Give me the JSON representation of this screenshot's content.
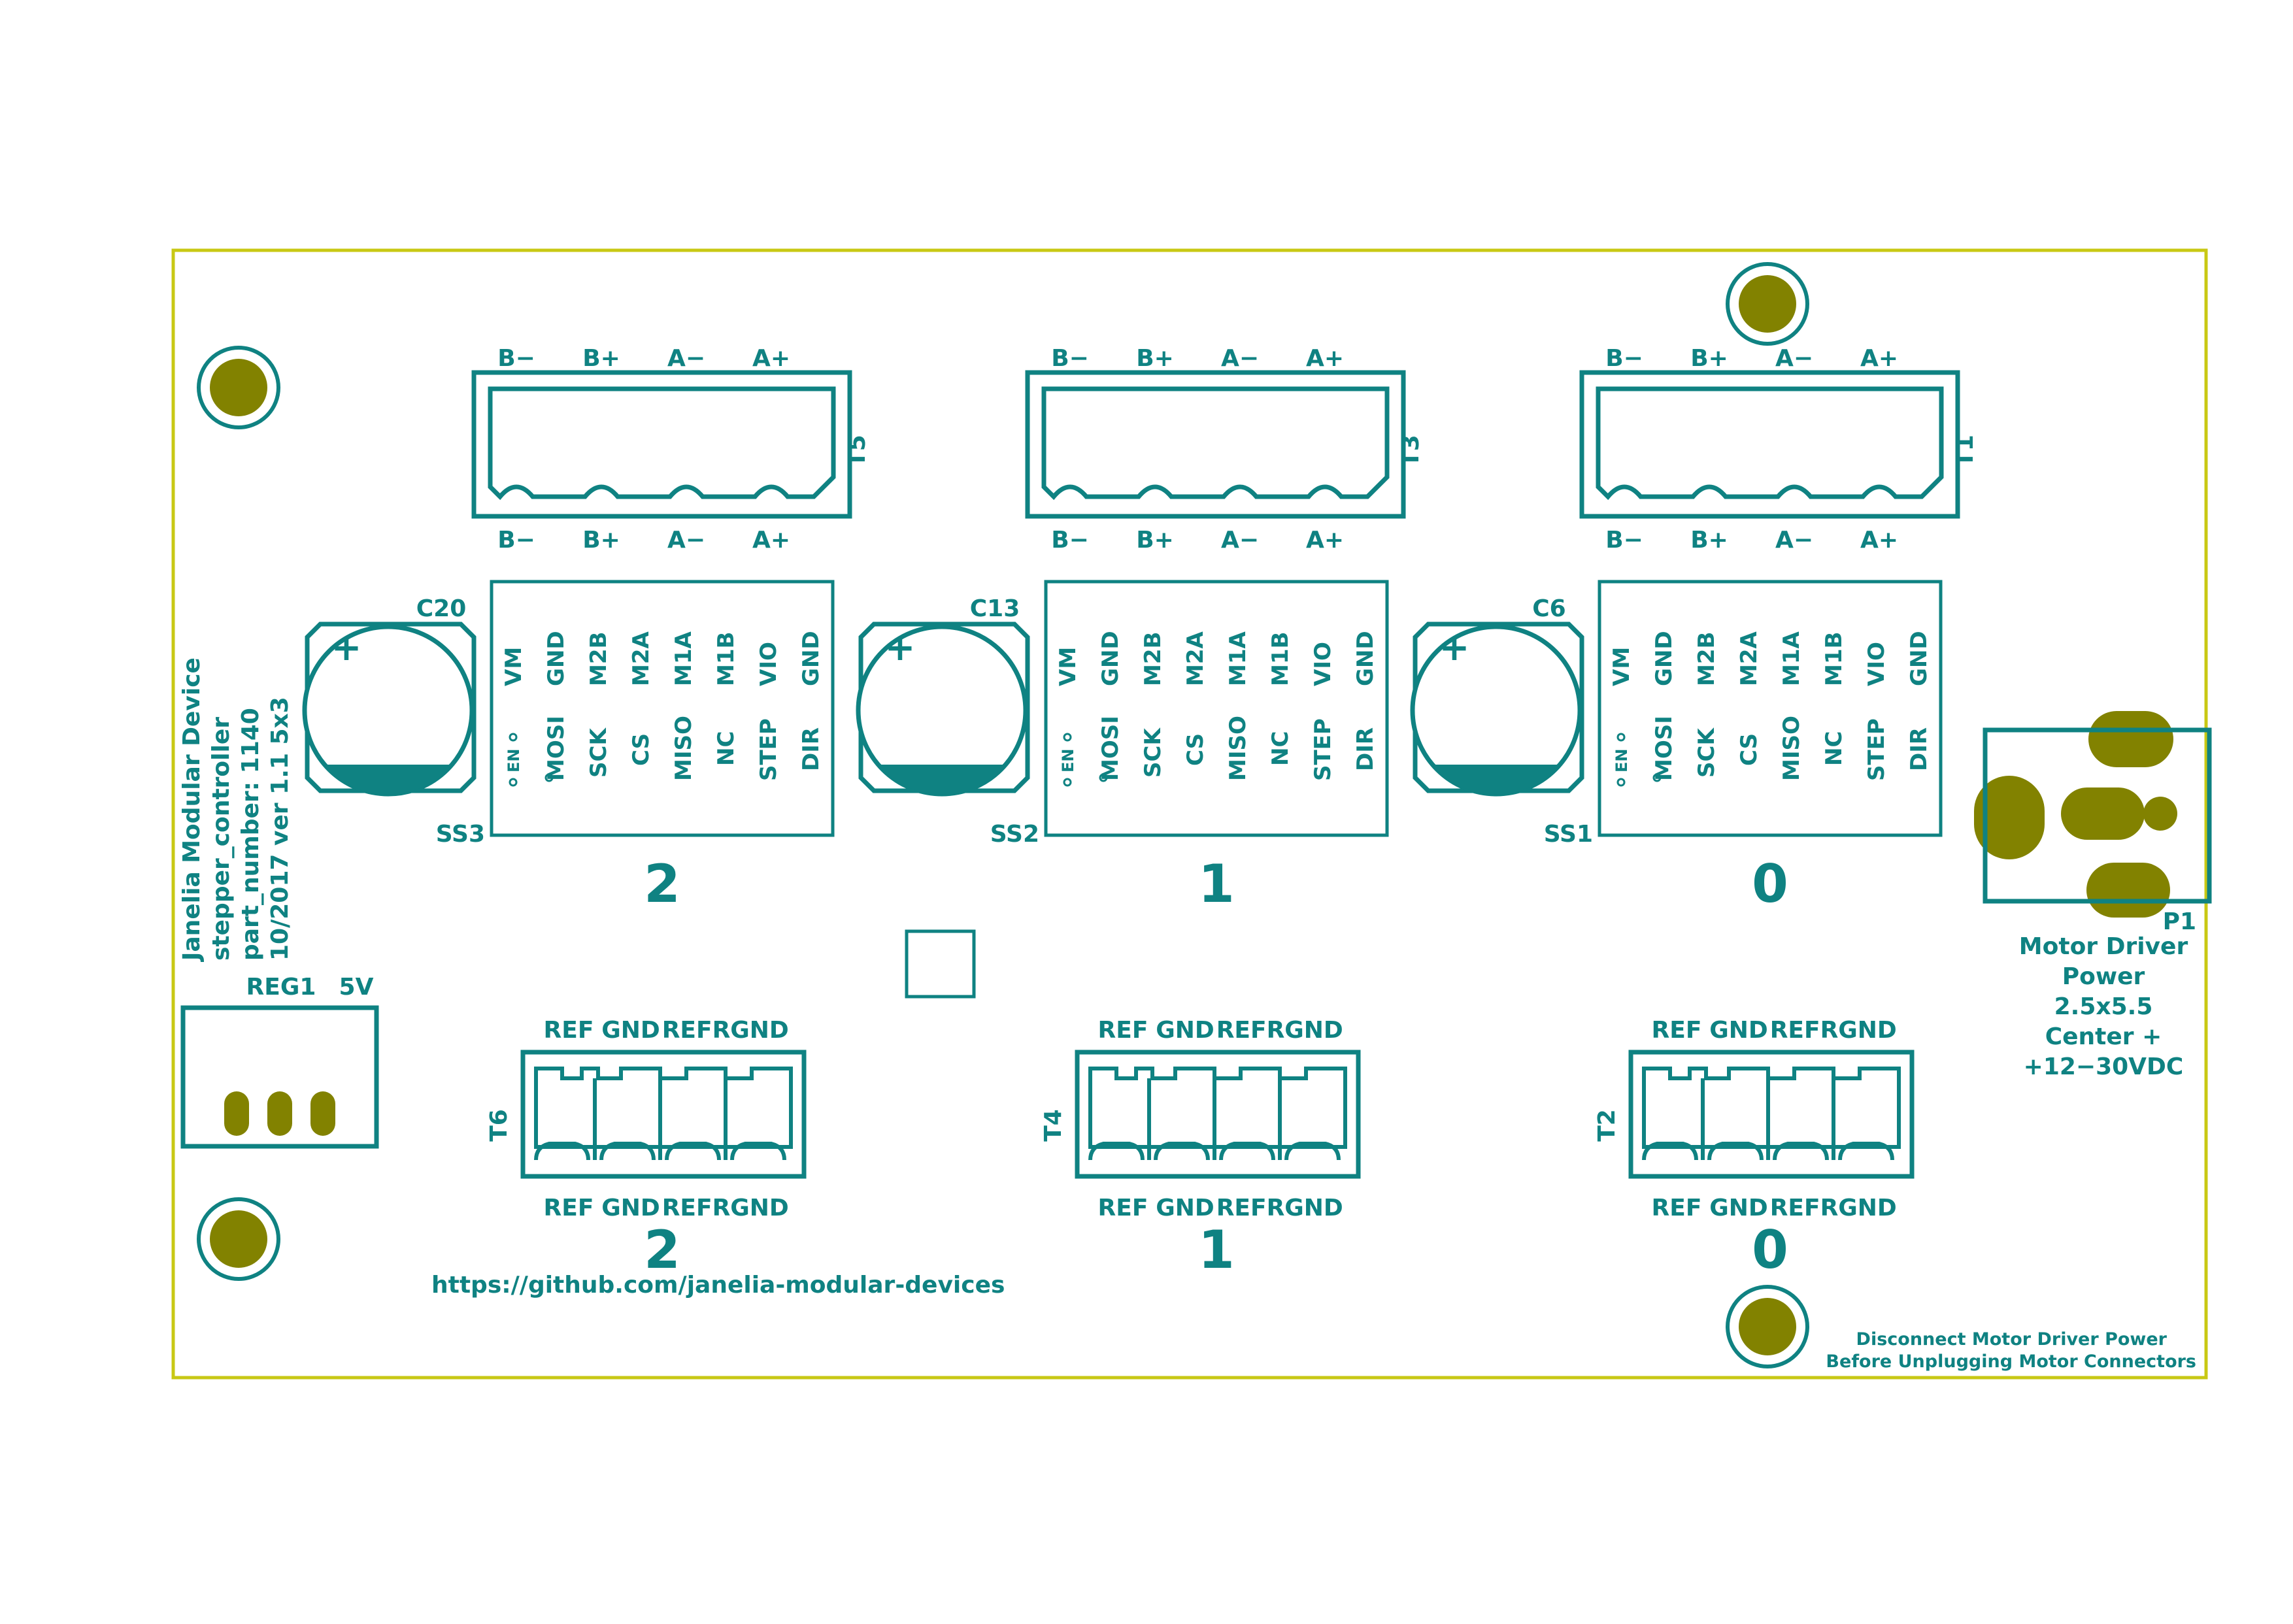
{
  "colors": {
    "outline": "#c8c814",
    "silk": "#0f8282",
    "pad": "#828200",
    "background": "#ffffff"
  },
  "board": {
    "title_lines": [
      "Janelia Modular Device",
      "stepper_controller",
      "part_number: 1140",
      "10/2017 ver 1.1 5x3"
    ],
    "url": "https://github.com/janelia-modular-devices",
    "warning_lines": [
      "Disconnect Motor Driver Power",
      "Before Unplugging Motor Connectors"
    ]
  },
  "motor_connectors": [
    {
      "ref": "T5",
      "pins": [
        "B−",
        "B+",
        "A−",
        "A+"
      ]
    },
    {
      "ref": "T3",
      "pins": [
        "B−",
        "B+",
        "A−",
        "A+"
      ]
    },
    {
      "ref": "T1",
      "pins": [
        "B−",
        "B+",
        "A−",
        "A+"
      ]
    }
  ],
  "capacitors": [
    "C20",
    "C13",
    "C6"
  ],
  "capacitor_polarity": "+",
  "drivers": [
    {
      "ref": "SS3",
      "channel": "2"
    },
    {
      "ref": "SS2",
      "channel": "1"
    },
    {
      "ref": "SS1",
      "channel": "0"
    }
  ],
  "driver_pins_top": [
    "VM",
    "GND",
    "M2B",
    "M2A",
    "M1A",
    "M1B",
    "VIO",
    "GND"
  ],
  "driver_pins_bottom": [
    "EN",
    "MOSI",
    "SCK",
    "CS",
    "MISO",
    "NC",
    "STEP",
    "DIR"
  ],
  "ref_connectors": [
    {
      "ref": "T6",
      "channel": "2"
    },
    {
      "ref": "T4",
      "channel": "1"
    },
    {
      "ref": "T2",
      "channel": "0"
    }
  ],
  "ref_pins": [
    "REF",
    "GND",
    "REFR",
    "GND"
  ],
  "regulator": {
    "ref": "REG1",
    "value": "5V"
  },
  "power_jack": {
    "ref": "P1",
    "lines": [
      "Motor Driver",
      "Power",
      "2.5x5.5",
      "Center +",
      "+12−30VDC"
    ]
  }
}
